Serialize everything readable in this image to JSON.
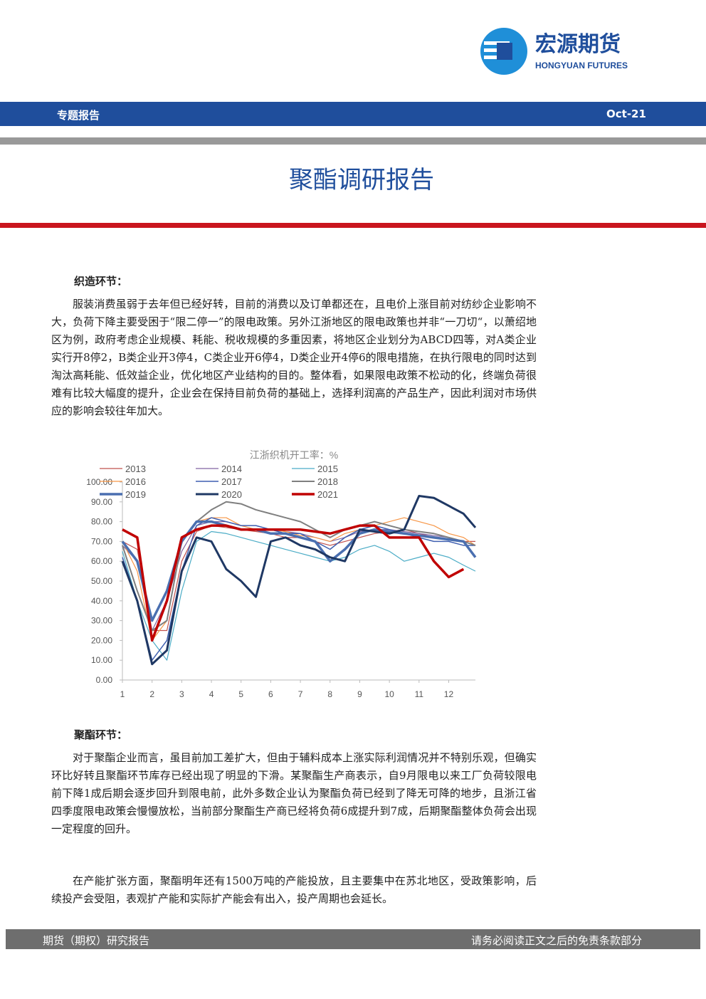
{
  "header": {
    "brand": "宏源期货",
    "brand_en": "HONGYUAN FUTURES",
    "section": "专题报告",
    "date": "Oct-21"
  },
  "title": "聚酯调研报告",
  "sections": [
    {
      "heading": "织造环节：",
      "paragraphs": [
        "服装消费虽弱于去年但已经好转，目前的消费以及订单都还在，且电价上涨目前对纺纱企业影响不大，负荷下降主要受困于“限二停一”的限电政策。另外江浙地区的限电政策也并非“一刀切“，以萧绍地区为例，政府考虑企业规模、耗能、税收规模的多重因素，将地区企业划分为ABCD四等，对A类企业实行开8停2，B类企业开3停4，C类企业开6停4，D类企业开4停6的限电措施，在执行限电的同时达到淘汰高耗能、低效益企业，优化地区产业结构的目的。整体看，如果限电政策不松动的化，终端负荷很难有比较大幅度的提升，企业会在保持目前负荷的基础上，选择利润高的产品生产，因此利润对市场供应的影响会较往年加大。"
      ]
    },
    {
      "heading": "聚酯环节：",
      "paragraphs": [
        "对于聚酯企业而言，虽目前加工差扩大，但由于辅料成本上涨实际利润情况并不特别乐观，但确实环比好转且聚酯环节库存已经出现了明显的下滑。某聚酯生产商表示，自9月限电以来工厂负荷较限电前下降1成后期会逐步回升到限电前，此外多数企业认为聚酯负荷已经到了降无可降的地步，且浙江省四季度限电政策会慢慢放松，当前部分聚酯生产商已经将负荷6成提升到7成，后期聚酯整体负荷会出现一定程度的回升。",
        "在产能扩张方面，聚酯明年还有1500万吨的产能投放，且主要集中在苏北地区，受政策影响，后续投产会受阻，表观扩产能和实际扩产能会有出入，投产周期也会延长。"
      ]
    }
  ],
  "chart_data": {
    "type": "line",
    "title": "江浙织机开工率：%",
    "x": [
      1,
      1.5,
      2,
      2.5,
      3,
      3.5,
      4,
      4.5,
      5,
      5.5,
      6,
      6.5,
      7,
      7.5,
      8,
      8.5,
      9,
      9.5,
      10,
      10.5,
      11,
      11.5,
      12,
      12.5,
      12.9
    ],
    "xlim": [
      1,
      12.9
    ],
    "xticks": [
      1,
      2,
      3,
      4,
      5,
      6,
      7,
      8,
      9,
      10,
      11,
      12
    ],
    "ylim": [
      0,
      100
    ],
    "yticks": [
      {
        "value": 0,
        "label": "0.00"
      },
      {
        "value": 10,
        "label": "10.00"
      },
      {
        "value": 20,
        "label": "20.00"
      },
      {
        "value": 30,
        "label": "30.00"
      },
      {
        "value": 40,
        "label": "40.00"
      },
      {
        "value": 50,
        "label": "50.00"
      },
      {
        "value": 60,
        "label": "60.00"
      },
      {
        "value": 70,
        "label": "70.00"
      },
      {
        "value": 80,
        "label": "80.00"
      },
      {
        "value": 90,
        "label": "90.00"
      },
      {
        "value": 100,
        "label": "100.00"
      }
    ],
    "series": [
      {
        "name": "2013",
        "color": "#c0504d",
        "values": [
          70,
          66,
          25,
          25,
          60,
          75,
          78,
          77,
          76,
          75,
          74,
          72,
          72,
          70,
          68,
          70,
          72,
          74,
          75,
          76,
          74,
          72,
          71,
          70,
          70
        ]
      },
      {
        "name": "2014",
        "color": "#8064a2",
        "values": [
          68,
          60,
          25,
          40,
          65,
          78,
          80,
          80,
          78,
          76,
          76,
          75,
          74,
          72,
          70,
          72,
          75,
          76,
          76,
          75,
          74,
          73,
          72,
          70,
          68
        ]
      },
      {
        "name": "2015",
        "color": "#4bacc6",
        "values": [
          65,
          40,
          20,
          10,
          45,
          70,
          75,
          74,
          72,
          70,
          68,
          66,
          64,
          62,
          60,
          62,
          66,
          68,
          65,
          60,
          62,
          64,
          62,
          58,
          55
        ]
      },
      {
        "name": "2016",
        "color": "#f79646",
        "values": [
          70,
          55,
          20,
          30,
          70,
          80,
          82,
          82,
          78,
          76,
          76,
          75,
          73,
          72,
          70,
          74,
          76,
          78,
          80,
          82,
          80,
          78,
          74,
          72,
          68
        ]
      },
      {
        "name": "2017",
        "color": "#3f5fb0",
        "values": [
          62,
          40,
          10,
          20,
          55,
          78,
          82,
          80,
          78,
          78,
          76,
          74,
          74,
          70,
          66,
          72,
          76,
          78,
          76,
          74,
          72,
          70,
          70,
          68,
          68
        ]
      },
      {
        "name": "2018",
        "color": "#7f7f7f",
        "values": [
          68,
          45,
          25,
          30,
          70,
          80,
          86,
          90,
          89,
          86,
          84,
          82,
          80,
          76,
          72,
          76,
          78,
          80,
          78,
          76,
          75,
          74,
          72,
          70,
          68
        ]
      },
      {
        "name": "2019",
        "color": "#4a6fb0",
        "values": [
          70,
          60,
          30,
          45,
          70,
          80,
          80,
          78,
          76,
          76,
          74,
          74,
          72,
          70,
          60,
          66,
          74,
          76,
          75,
          74,
          73,
          72,
          71,
          70,
          62
        ]
      },
      {
        "name": "2020",
        "color": "#1f3864",
        "values": [
          60,
          40,
          8,
          15,
          55,
          72,
          70,
          56,
          50,
          42,
          70,
          72,
          68,
          66,
          62,
          60,
          76,
          75,
          74,
          76,
          93,
          92,
          88,
          84,
          77
        ]
      },
      {
        "name": "2021",
        "color": "#c00000",
        "values": [
          76,
          72,
          20,
          40,
          72,
          76,
          78,
          78,
          76,
          76,
          76,
          76,
          76,
          75,
          74,
          76,
          78,
          78,
          72,
          72,
          72,
          60,
          52,
          56,
          null
        ]
      }
    ]
  },
  "footer": {
    "left": "期货（期权）研究报告",
    "right": "请务必阅读正文之后的免责条款部分"
  }
}
